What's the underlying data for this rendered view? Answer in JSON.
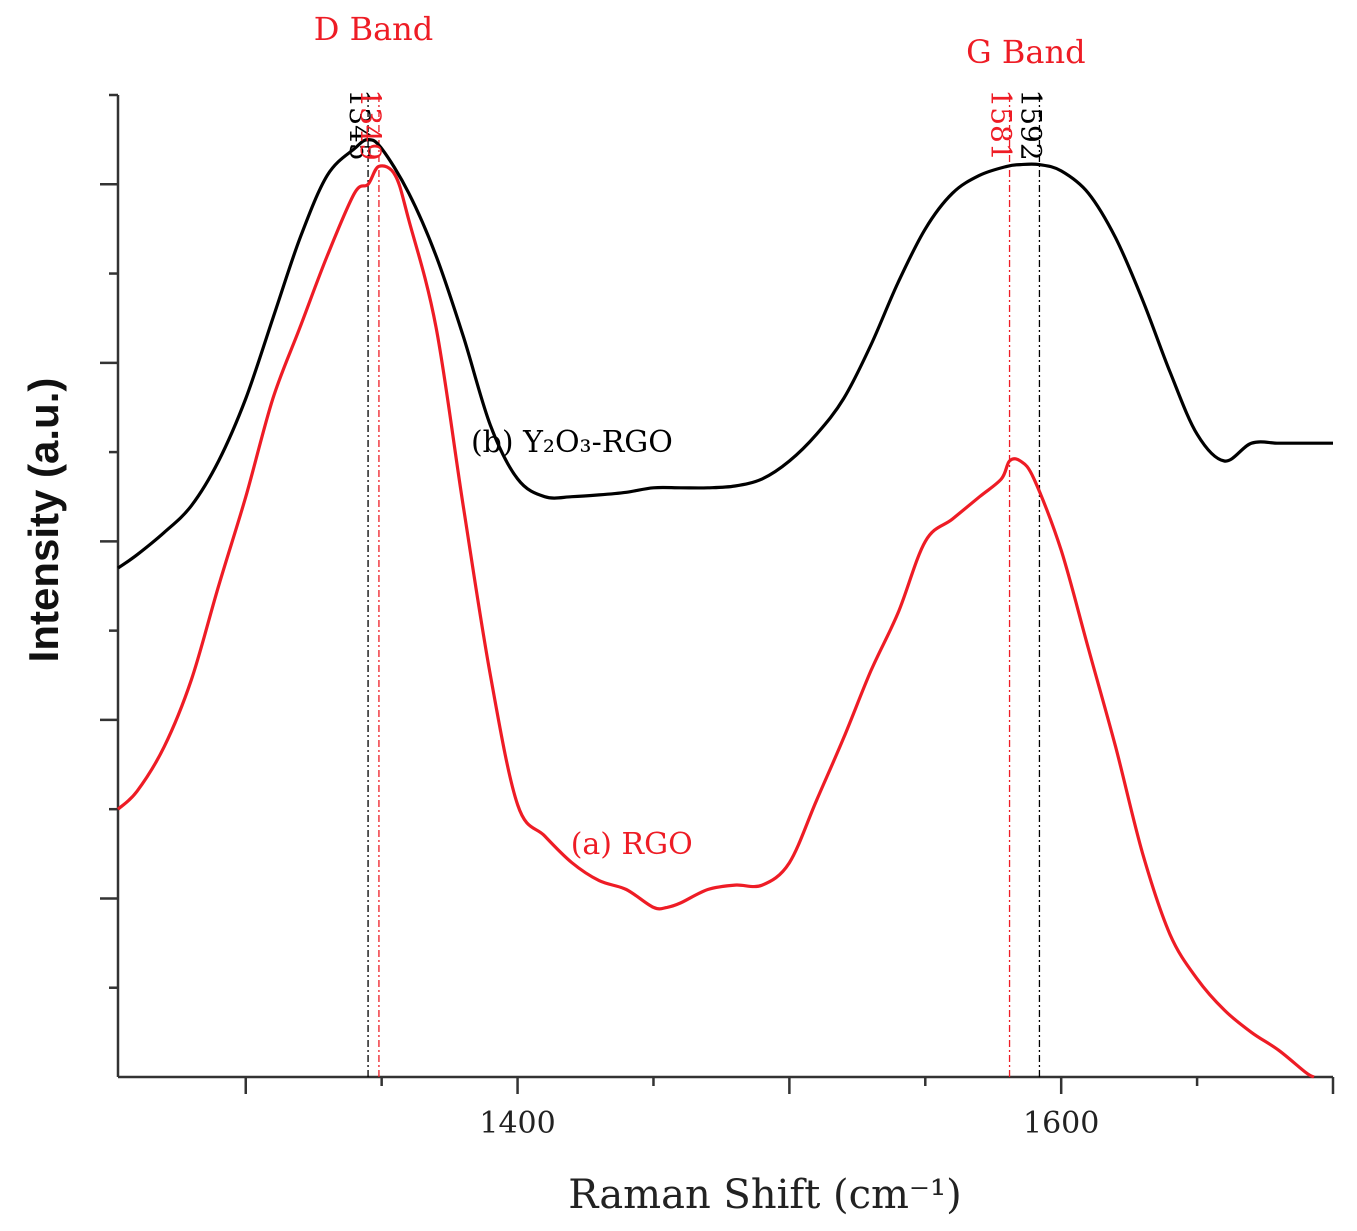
{
  "chart_data": {
    "type": "line",
    "xlabel": "Raman Shift (cm⁻¹)",
    "ylabel": "Intensity (a.u.)",
    "xlim": [
      1253,
      1700
    ],
    "ylim": [
      0,
      1100
    ],
    "x_ticks_major": [
      1300,
      1400,
      1500,
      1600,
      1700
    ],
    "x_tick_labels": [
      "1400",
      "1600"
    ],
    "x_tick_label_values": [
      1400,
      1600
    ],
    "y_ticks": [
      100,
      200,
      300,
      400,
      500,
      600,
      700,
      800,
      900,
      1000,
      1100
    ],
    "band_labels": [
      {
        "text": "D Band",
        "x": 1347,
        "color": "#ee1c25"
      },
      {
        "text": "G Band",
        "x": 1587,
        "color": "#ee1c25"
      }
    ],
    "peak_markers": [
      {
        "label": "1345",
        "x": 1345,
        "color": "#000000"
      },
      {
        "label": "1349",
        "x": 1349,
        "color": "#ee1c25"
      },
      {
        "label": "1581",
        "x": 1581,
        "color": "#ee1c25"
      },
      {
        "label": "1592",
        "x": 1592,
        "color": "#000000"
      }
    ],
    "series": [
      {
        "name": "(a) RGO",
        "color": "#ee1c25",
        "label_pos": {
          "x": 1442,
          "y": 250
        },
        "x": [
          1253,
          1260,
          1270,
          1280,
          1290,
          1300,
          1310,
          1320,
          1330,
          1340,
          1345,
          1349,
          1355,
          1360,
          1370,
          1380,
          1390,
          1400,
          1410,
          1420,
          1430,
          1440,
          1450,
          1455,
          1460,
          1470,
          1480,
          1490,
          1500,
          1510,
          1520,
          1530,
          1540,
          1550,
          1560,
          1570,
          1578,
          1581,
          1585,
          1590,
          1600,
          1610,
          1620,
          1630,
          1640,
          1650,
          1660,
          1670,
          1680,
          1690,
          1693
        ],
        "values": [
          300,
          320,
          370,
          445,
          550,
          650,
          760,
          840,
          920,
          990,
          1000,
          1020,
          1010,
          960,
          840,
          640,
          450,
          305,
          270,
          240,
          220,
          210,
          190,
          190,
          195,
          210,
          215,
          215,
          240,
          310,
          380,
          455,
          520,
          600,
          625,
          650,
          670,
          690,
          690,
          670,
          590,
          480,
          370,
          250,
          160,
          110,
          75,
          50,
          30,
          5,
          0
        ]
      },
      {
        "name": "(b) Y₂O₃-RGO",
        "color": "#000000",
        "label_pos": {
          "x": 1420,
          "y": 700
        },
        "x": [
          1253,
          1260,
          1270,
          1280,
          1290,
          1300,
          1310,
          1320,
          1330,
          1340,
          1345,
          1350,
          1360,
          1370,
          1380,
          1390,
          1400,
          1410,
          1420,
          1430,
          1440,
          1450,
          1460,
          1470,
          1480,
          1490,
          1500,
          1510,
          1520,
          1530,
          1540,
          1550,
          1560,
          1570,
          1580,
          1585,
          1592,
          1600,
          1610,
          1620,
          1630,
          1640,
          1650,
          1660,
          1670,
          1680,
          1690,
          1700
        ],
        "values": [
          570,
          585,
          610,
          640,
          690,
          760,
          850,
          940,
          1010,
          1040,
          1050,
          1040,
          990,
          920,
          830,
          730,
          670,
          650,
          650,
          652,
          655,
          660,
          660,
          660,
          662,
          670,
          690,
          720,
          760,
          820,
          890,
          950,
          990,
          1010,
          1020,
          1022,
          1022,
          1015,
          990,
          940,
          870,
          790,
          720,
          690,
          710,
          710,
          710,
          710
        ]
      }
    ]
  }
}
